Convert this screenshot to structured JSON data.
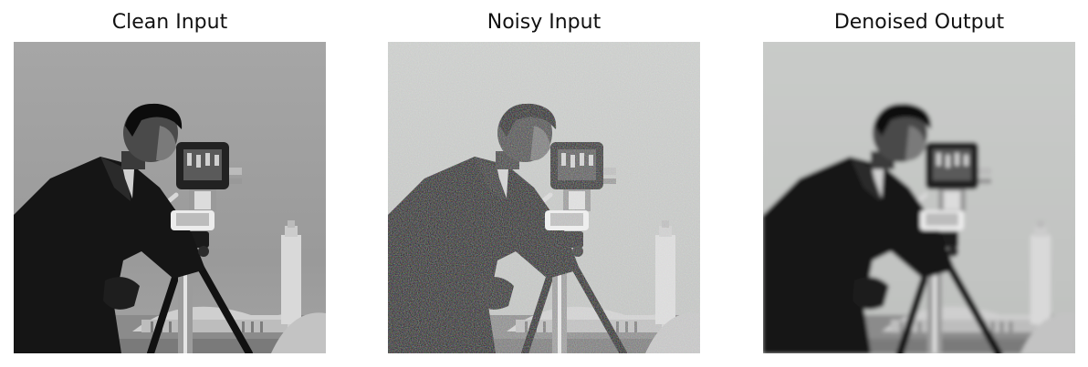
{
  "panels": [
    {
      "title": "Clean Input",
      "variant": "clean"
    },
    {
      "title": "Noisy Input",
      "variant": "noisy"
    },
    {
      "title": "Denoised Output",
      "variant": "denoised"
    }
  ],
  "colors": {
    "background": "#ffffff",
    "title_text": "#111111",
    "sky_clean": "#9a9a9a",
    "coat": "#141414",
    "ground": "#8a8a8a"
  }
}
